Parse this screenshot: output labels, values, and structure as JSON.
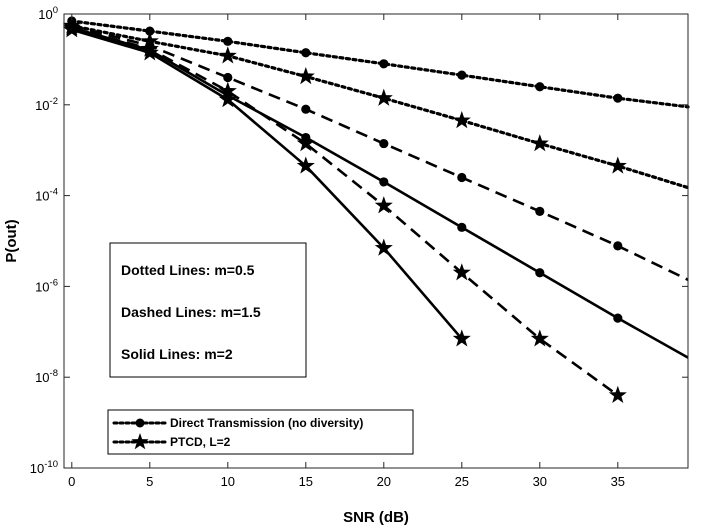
{
  "chart_data": {
    "type": "line",
    "title": "",
    "xlabel": "SNR (dB)",
    "ylabel": "P(out)",
    "xlim": [
      -0.5,
      39.5
    ],
    "ylim": [
      1e-10,
      1
    ],
    "yscale": "log",
    "grid": false,
    "x_ticks": [
      0,
      5,
      10,
      15,
      20,
      25,
      30,
      35
    ],
    "x_tick_labels": [
      "0",
      "5",
      "10",
      "15",
      "20",
      "25",
      "30",
      "35"
    ],
    "y_ticks": [
      {
        "value": 1,
        "base": "10",
        "exp": "0"
      },
      {
        "value": 0.01,
        "base": "10",
        "exp": "-2"
      },
      {
        "value": 0.0001,
        "base": "10",
        "exp": "-4"
      },
      {
        "value": 1e-06,
        "base": "10",
        "exp": "-6"
      },
      {
        "value": 1e-08,
        "base": "10",
        "exp": "-8"
      },
      {
        "value": 1e-10,
        "base": "10",
        "exp": "-10"
      }
    ],
    "series": [
      {
        "name": "Direct Transmission (no diversity)",
        "m": 0.5,
        "style": "dotted",
        "marker": "circle",
        "x": [
          0,
          5,
          10,
          15,
          20,
          25,
          30,
          35,
          39.5
        ],
        "y": [
          0.7,
          0.42,
          0.25,
          0.14,
          0.08,
          0.045,
          0.025,
          0.014,
          0.009
        ]
      },
      {
        "name": "PTCD, L=2",
        "m": 0.5,
        "style": "dotted",
        "marker": "star",
        "x": [
          0,
          5,
          10,
          15,
          20,
          25,
          30,
          35,
          39.5
        ],
        "y": [
          0.55,
          0.25,
          0.12,
          0.042,
          0.014,
          0.0045,
          0.0014,
          0.00045,
          0.00015
        ]
      },
      {
        "name": "Direct Transmission (no diversity)",
        "m": 1.5,
        "style": "dashed",
        "marker": "circle",
        "x": [
          0,
          5,
          10,
          15,
          20,
          25,
          30,
          35,
          39.5
        ],
        "y": [
          0.55,
          0.2,
          0.04,
          0.008,
          0.0014,
          0.00025,
          4.5e-05,
          7.8e-06,
          1.4e-06
        ]
      },
      {
        "name": "PTCD, L=2",
        "m": 1.5,
        "style": "dashed",
        "marker": "star",
        "x": [
          0,
          5,
          10,
          15,
          20,
          25,
          30,
          35
        ],
        "y": [
          0.5,
          0.17,
          0.02,
          0.0014,
          6e-05,
          2e-06,
          7e-08,
          4e-09
        ]
      },
      {
        "name": "Direct Transmission (no diversity)",
        "m": 2,
        "style": "solid",
        "marker": "circle",
        "x": [
          0,
          5,
          10,
          15,
          20,
          25,
          30,
          35,
          39.5
        ],
        "y": [
          0.5,
          0.16,
          0.016,
          0.0019,
          0.0002,
          2e-05,
          2e-06,
          2e-07,
          2.7e-08
        ]
      },
      {
        "name": "PTCD, L=2",
        "m": 2,
        "style": "solid",
        "marker": "star",
        "x": [
          0,
          5,
          10,
          15,
          20,
          25
        ],
        "y": [
          0.45,
          0.14,
          0.013,
          0.00045,
          7e-06,
          7e-08
        ]
      }
    ],
    "annotations": [
      "Dotted Lines: m=0.5",
      "Dashed Lines: m=1.5",
      "Solid Lines: m=2"
    ],
    "legend": {
      "position": "bottom-left",
      "entries": [
        {
          "label": "Direct Transmission (no diversity)",
          "style": "dotted",
          "marker": "circle"
        },
        {
          "label": "PTCD, L=2",
          "style": "dotted",
          "marker": "star"
        }
      ]
    }
  }
}
